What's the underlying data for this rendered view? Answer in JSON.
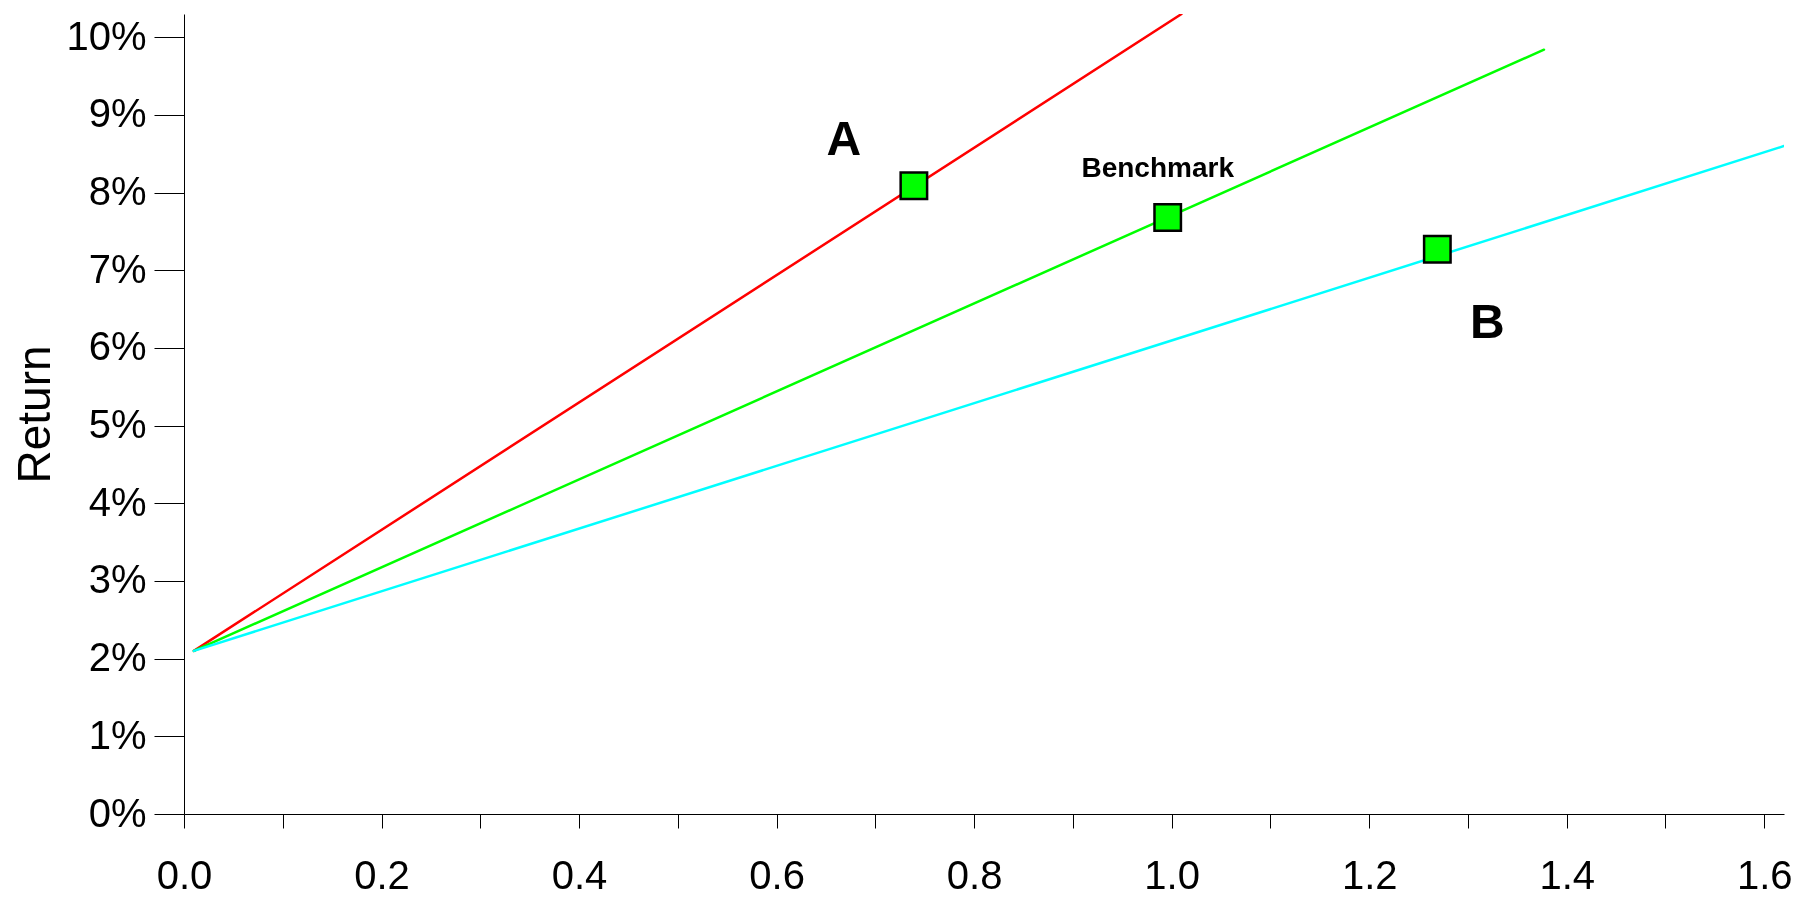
{
  "chart_data": {
    "type": "line",
    "ylabel": "Return",
    "xlim": [
      0,
      1.62
    ],
    "ylim": [
      0,
      10.3
    ],
    "xticks": [
      {
        "value": 0,
        "label": "0.0"
      },
      {
        "value": 0.1,
        "label": null
      },
      {
        "value": 0.2,
        "label": "0.2"
      },
      {
        "value": 0.3,
        "label": null
      },
      {
        "value": 0.4,
        "label": "0.4"
      },
      {
        "value": 0.5,
        "label": null
      },
      {
        "value": 0.6,
        "label": "0.6"
      },
      {
        "value": 0.7,
        "label": null
      },
      {
        "value": 0.8,
        "label": "0.8"
      },
      {
        "value": 0.9,
        "label": null
      },
      {
        "value": 1.0,
        "label": "1.0"
      },
      {
        "value": 1.1,
        "label": null
      },
      {
        "value": 1.2,
        "label": "1.2"
      },
      {
        "value": 1.3,
        "label": null
      },
      {
        "value": 1.4,
        "label": "1.4"
      },
      {
        "value": 1.5,
        "label": null
      },
      {
        "value": 1.6,
        "label": "1.6"
      }
    ],
    "yticks": [
      {
        "value": 0,
        "label": "0%"
      },
      {
        "value": 1,
        "label": "1%"
      },
      {
        "value": 2,
        "label": "2%"
      },
      {
        "value": 3,
        "label": "3%"
      },
      {
        "value": 4,
        "label": "4%"
      },
      {
        "value": 5,
        "label": "5%"
      },
      {
        "value": 6,
        "label": "6%"
      },
      {
        "value": 7,
        "label": "7%"
      },
      {
        "value": 8,
        "label": "8%"
      },
      {
        "value": 9,
        "label": "9%"
      },
      {
        "value": 10,
        "label": "10%"
      }
    ],
    "grid": false,
    "marker": "none",
    "line_style": "solid",
    "series": [
      {
        "name": "A",
        "color": "#ff0000",
        "x": [
          0.01,
          1.01
        ],
        "values": [
          2.1,
          10.3
        ]
      },
      {
        "name": "Benchmark",
        "color": "#00ff00",
        "x": [
          0.01,
          1.377
        ],
        "values": [
          2.1,
          9.84
        ]
      },
      {
        "name": "B",
        "color": "#00ffff",
        "x": [
          0.01,
          1.62
        ],
        "values": [
          2.1,
          8.6
        ]
      },
      {
        "type": "scatter",
        "marker": "square",
        "color": "#00ff00",
        "x": [
          0.739,
          0.996,
          1.269
        ],
        "values": [
          8.09,
          7.68,
          7.27
        ]
      }
    ]
  }
}
